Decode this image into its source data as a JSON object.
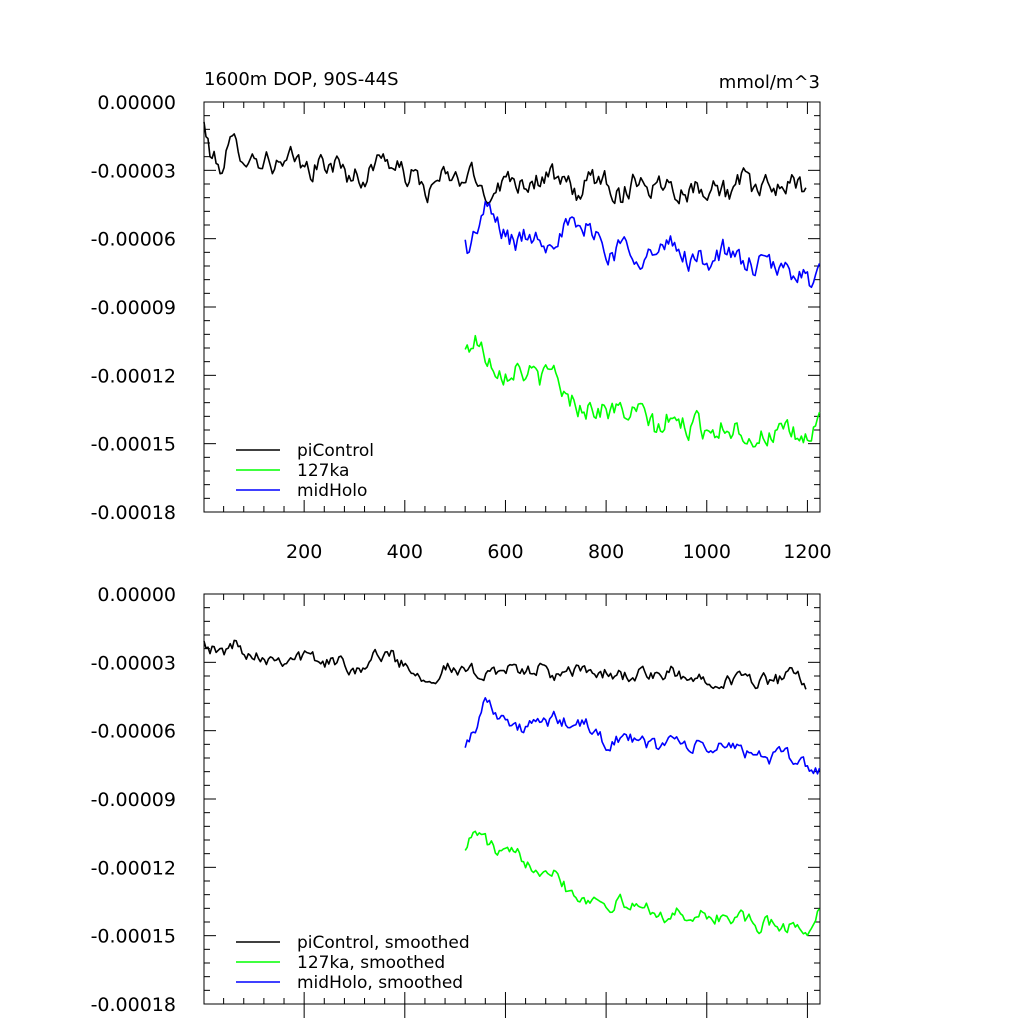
{
  "chart_data": [
    {
      "type": "line",
      "title": "1600m DOP, 90S-44S",
      "units": "mmol/m^3",
      "xlabel": "",
      "ylabel": "",
      "xlim": [
        1,
        1225
      ],
      "ylim": [
        -0.00018,
        0.0
      ],
      "x_ticks": [
        200,
        400,
        600,
        800,
        1000,
        1200
      ],
      "y_ticks": [
        0.0,
        -3e-05,
        -6e-05,
        -9e-05,
        -0.00012,
        -0.00015,
        -0.00018
      ],
      "y_tick_labels": [
        "0.00000",
        "-0.00003",
        "-0.00006",
        "-0.00009",
        "-0.00012",
        "-0.00015",
        "-0.00018"
      ],
      "grid": false,
      "legend_position": "bottom-left",
      "series": [
        {
          "name": "piControl",
          "color": "#000000",
          "x": [
            1,
            10,
            20,
            30,
            50,
            70,
            100,
            130,
            160,
            180,
            200,
            230,
            260,
            290,
            320,
            340,
            360,
            380,
            400,
            420,
            450,
            470,
            500,
            530,
            560,
            590,
            620,
            650,
            680,
            710,
            740,
            770,
            800,
            830,
            860,
            890,
            920,
            950,
            980,
            1010,
            1040,
            1070,
            1100,
            1130,
            1160,
            1190,
            1200
          ],
          "y": [
            -1e-05,
            -2e-05,
            -2.5e-05,
            -3e-05,
            -2e-05,
            -2e-05,
            -2.5e-05,
            -2.5e-05,
            -3e-05,
            -2.5e-05,
            -3e-05,
            -2.8e-05,
            -2.7e-05,
            -3.2e-05,
            -3.3e-05,
            -2.8e-05,
            -2.2e-05,
            -3e-05,
            -3.2e-05,
            -3.3e-05,
            -4e-05,
            -3.3e-05,
            -3.5e-05,
            -3.2e-05,
            -4e-05,
            -3.5e-05,
            -3.3e-05,
            -3.5e-05,
            -3.2e-05,
            -3.6e-05,
            -4e-05,
            -3.5e-05,
            -3.3e-05,
            -4.2e-05,
            -3.2e-05,
            -3.7e-05,
            -3.5e-05,
            -3.8e-05,
            -3.8e-05,
            -3.5e-05,
            -4e-05,
            -3.5e-05,
            -4e-05,
            -3.8e-05,
            -3.5e-05,
            -4e-05,
            -3e-05
          ]
        },
        {
          "name": "127ka",
          "color": "#00ff00",
          "x": [
            520,
            530,
            540,
            550,
            570,
            600,
            620,
            650,
            680,
            700,
            720,
            750,
            800,
            850,
            880,
            900,
            920,
            950,
            1000,
            1050,
            1080,
            1100,
            1130,
            1160,
            1200,
            1225
          ],
          "y": [
            -0.00011,
            -0.000108,
            -0.000102,
            -0.000108,
            -0.000113,
            -0.000118,
            -0.000115,
            -0.00012,
            -0.000122,
            -0.000118,
            -0.00013,
            -0.000133,
            -0.000135,
            -0.000137,
            -0.000138,
            -0.000145,
            -0.00014,
            -0.000142,
            -0.000143,
            -0.000142,
            -0.000145,
            -0.000148,
            -0.000145,
            -0.000147,
            -0.000148,
            -0.00014
          ]
        },
        {
          "name": "midHolo",
          "color": "#0000ff",
          "x": [
            520,
            530,
            540,
            550,
            560,
            570,
            600,
            620,
            650,
            680,
            700,
            720,
            750,
            780,
            800,
            830,
            860,
            900,
            930,
            960,
            1000,
            1030,
            1060,
            1100,
            1130,
            1160,
            1190,
            1210,
            1225
          ],
          "y": [
            -6.2e-05,
            -6.5e-05,
            -5.8e-05,
            -5.2e-05,
            -4.7e-05,
            -5e-05,
            -5.8e-05,
            -6.2e-05,
            -5.8e-05,
            -6e-05,
            -5.7e-05,
            -5.5e-05,
            -5.8e-05,
            -5.5e-05,
            -6.8e-05,
            -6.3e-05,
            -6.5e-05,
            -6.8e-05,
            -6.3e-05,
            -6.8e-05,
            -7e-05,
            -6.5e-05,
            -7e-05,
            -7.2e-05,
            -7.3e-05,
            -7.5e-05,
            -7.3e-05,
            -8.2e-05,
            -7.7e-05
          ]
        }
      ]
    },
    {
      "type": "line",
      "title": "",
      "units": "",
      "xlabel": "",
      "ylabel": "",
      "xlim": [
        1,
        1225
      ],
      "ylim": [
        -0.00018,
        0.0
      ],
      "x_ticks": [
        200,
        400,
        600,
        800,
        1000,
        1200
      ],
      "y_ticks": [
        0.0,
        -3e-05,
        -6e-05,
        -9e-05,
        -0.00012,
        -0.00015,
        -0.00018
      ],
      "y_tick_labels": [
        "0.00000",
        "-0.00003",
        "-0.00006",
        "-0.00009",
        "-0.00012",
        "-0.00015",
        "-0.00018"
      ],
      "grid": false,
      "legend_position": "bottom-left",
      "series": [
        {
          "name": "piControl, smoothed",
          "color": "#000000",
          "x": [
            1,
            10,
            30,
            60,
            90,
            120,
            150,
            180,
            210,
            240,
            270,
            300,
            330,
            360,
            390,
            420,
            450,
            480,
            510,
            540,
            570,
            600,
            630,
            660,
            690,
            720,
            750,
            780,
            810,
            840,
            870,
            900,
            930,
            960,
            990,
            1020,
            1050,
            1080,
            1110,
            1140,
            1170,
            1200
          ],
          "y": [
            -1.8e-05,
            -2.2e-05,
            -2.7e-05,
            -2.2e-05,
            -2.5e-05,
            -2.7e-05,
            -2.8e-05,
            -2.7e-05,
            -2.8e-05,
            -3e-05,
            -3e-05,
            -3.2e-05,
            -3e-05,
            -2.5e-05,
            -3e-05,
            -3.3e-05,
            -3.7e-05,
            -3.2e-05,
            -3.5e-05,
            -3.5e-05,
            -3.3e-05,
            -3.3e-05,
            -3.5e-05,
            -3.2e-05,
            -3.5e-05,
            -3.7e-05,
            -3.3e-05,
            -3.5e-05,
            -3.5e-05,
            -3.6e-05,
            -3.5e-05,
            -3.7e-05,
            -3.5e-05,
            -3.8e-05,
            -3.7e-05,
            -3.6e-05,
            -3.8e-05,
            -3.7e-05,
            -3.8e-05,
            -3.8e-05,
            -3.6e-05,
            -4e-05
          ]
        },
        {
          "name": "127ka, smoothed",
          "color": "#00ff00",
          "x": [
            520,
            530,
            540,
            560,
            580,
            600,
            620,
            650,
            680,
            700,
            720,
            750,
            800,
            850,
            900,
            920,
            950,
            1000,
            1050,
            1080,
            1100,
            1130,
            1160,
            1200,
            1225
          ],
          "y": [
            -0.00011,
            -0.000108,
            -0.000104,
            -0.000108,
            -0.000113,
            -0.000115,
            -0.000115,
            -0.000118,
            -0.00012,
            -0.00012,
            -0.000128,
            -0.000133,
            -0.000135,
            -0.000137,
            -0.000138,
            -0.000143,
            -0.00014,
            -0.000142,
            -0.000142,
            -0.000143,
            -0.000147,
            -0.000144,
            -0.000146,
            -0.000147,
            -0.00014
          ]
        },
        {
          "name": "midHolo, smoothed",
          "color": "#0000ff",
          "x": [
            520,
            530,
            540,
            550,
            560,
            580,
            600,
            620,
            650,
            680,
            700,
            730,
            760,
            800,
            830,
            860,
            900,
            930,
            960,
            1000,
            1030,
            1060,
            1100,
            1130,
            1160,
            1190,
            1210,
            1225
          ],
          "y": [
            -6.5e-05,
            -6.3e-05,
            -5.8e-05,
            -5.2e-05,
            -4.7e-05,
            -5e-05,
            -5.5e-05,
            -6e-05,
            -5.8e-05,
            -5.7e-05,
            -5.5e-05,
            -5.7e-05,
            -5.8e-05,
            -6.5e-05,
            -6.3e-05,
            -6.5e-05,
            -6.7e-05,
            -6.3e-05,
            -6.7e-05,
            -6.8e-05,
            -6.7e-05,
            -6.8e-05,
            -7e-05,
            -7.2e-05,
            -7.2e-05,
            -7.3e-05,
            -7.8e-05,
            -7.7e-05
          ]
        }
      ]
    }
  ]
}
